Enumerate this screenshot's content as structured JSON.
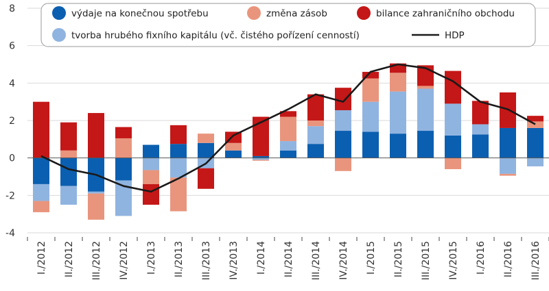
{
  "chart_data": {
    "type": "bar",
    "stacked": true,
    "grid": true,
    "ylim": [
      -4,
      8
    ],
    "yticks": [
      -4,
      -2,
      0,
      2,
      4,
      6,
      8
    ],
    "categories": [
      "I./2012",
      "II./2012",
      "III./2012",
      "IV./2012",
      "I./2013",
      "II./2013",
      "III./2013",
      "IV./2013",
      "I./2014",
      "II./2014",
      "III./2014",
      "IV./2014",
      "I./2015",
      "II./2015",
      "III./2015",
      "IV./2015",
      "I./2016",
      "II./2016",
      "III./2016"
    ],
    "series": [
      {
        "name": "výdaje na konečnou spotřebu",
        "color": "#0b5fb0",
        "type": "bar",
        "values": [
          -1.4,
          -1.5,
          -1.8,
          -1.2,
          0.7,
          0.75,
          0.8,
          0.4,
          0.1,
          0.4,
          0.75,
          1.45,
          1.4,
          1.3,
          1.45,
          1.2,
          1.25,
          1.6,
          1.6
        ]
      },
      {
        "name": "tvorba hrubého fixního kapitálu (vč. čistého pořízení cenností)",
        "color": "#90b4e0",
        "type": "bar",
        "values": [
          -0.9,
          -1.0,
          -0.1,
          -1.9,
          -0.65,
          -1.05,
          -0.55,
          0.0,
          -0.1,
          0.5,
          0.95,
          1.1,
          1.6,
          2.25,
          2.25,
          1.7,
          0.55,
          -0.85,
          -0.45
        ]
      },
      {
        "name": "změna zásob",
        "color": "#e9957d",
        "type": "bar",
        "values": [
          -0.6,
          0.4,
          -1.4,
          1.05,
          -0.75,
          -1.8,
          0.5,
          0.4,
          -0.05,
          1.3,
          0.3,
          -0.7,
          1.25,
          1.0,
          0.15,
          -0.6,
          0.0,
          -0.1,
          0.35
        ]
      },
      {
        "name": "bilance zahraničního obchodu",
        "color": "#c41717",
        "type": "bar",
        "values": [
          3.0,
          1.5,
          2.4,
          0.6,
          -1.1,
          1.0,
          -1.1,
          0.6,
          2.1,
          0.3,
          1.4,
          1.2,
          0.35,
          0.5,
          1.1,
          1.75,
          1.25,
          1.9,
          0.3
        ]
      },
      {
        "name": "HDP",
        "color": "#1a1a1a",
        "type": "line",
        "values": [
          0.1,
          -0.6,
          -0.9,
          -1.5,
          -1.8,
          -1.1,
          -0.3,
          1.2,
          1.9,
          2.6,
          3.4,
          3.0,
          4.6,
          5.0,
          4.8,
          4.1,
          3.0,
          2.6,
          1.8
        ]
      }
    ]
  }
}
